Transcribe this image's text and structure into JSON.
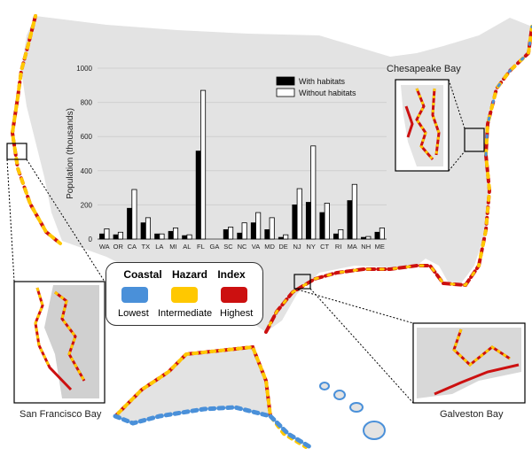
{
  "legend": {
    "title": "Coastal  Hazard  Index",
    "levels": [
      {
        "label": "Lowest",
        "color": "#4a90d9"
      },
      {
        "label": "Intermediate",
        "color": "#ffc800"
      },
      {
        "label": "Highest",
        "color": "#cc1010"
      }
    ]
  },
  "insets": {
    "chesapeake": "Chesapeake Bay",
    "san_francisco": "San  Francisco Bay",
    "galveston": "Galveston Bay"
  },
  "colors": {
    "land": "#e3e3e3",
    "with_habitats": "#000000",
    "without_habitats": "#ffffff"
  },
  "chart_data": {
    "type": "bar",
    "title": "",
    "xlabel": "",
    "ylabel": "Population (thousands)",
    "ylim": [
      0,
      1000
    ],
    "yticks": [
      0,
      200,
      400,
      600,
      800,
      1000
    ],
    "grid": true,
    "legend_position": "top-right",
    "categories": [
      "WA",
      "OR",
      "CA",
      "TX",
      "LA",
      "MI",
      "AL",
      "FL",
      "GA",
      "SC",
      "NC",
      "VA",
      "MD",
      "DE",
      "NJ",
      "NY",
      "CT",
      "RI",
      "MA",
      "NH",
      "ME"
    ],
    "series": [
      {
        "name": "With habitats",
        "values": [
          30,
          25,
          180,
          95,
          30,
          45,
          20,
          515,
          0,
          55,
          35,
          95,
          55,
          10,
          200,
          215,
          155,
          30,
          225,
          10,
          40
        ]
      },
      {
        "name": "Without habitats",
        "values": [
          60,
          40,
          290,
          125,
          30,
          65,
          25,
          870,
          0,
          70,
          95,
          155,
          125,
          25,
          295,
          545,
          210,
          55,
          320,
          15,
          65
        ]
      }
    ]
  }
}
